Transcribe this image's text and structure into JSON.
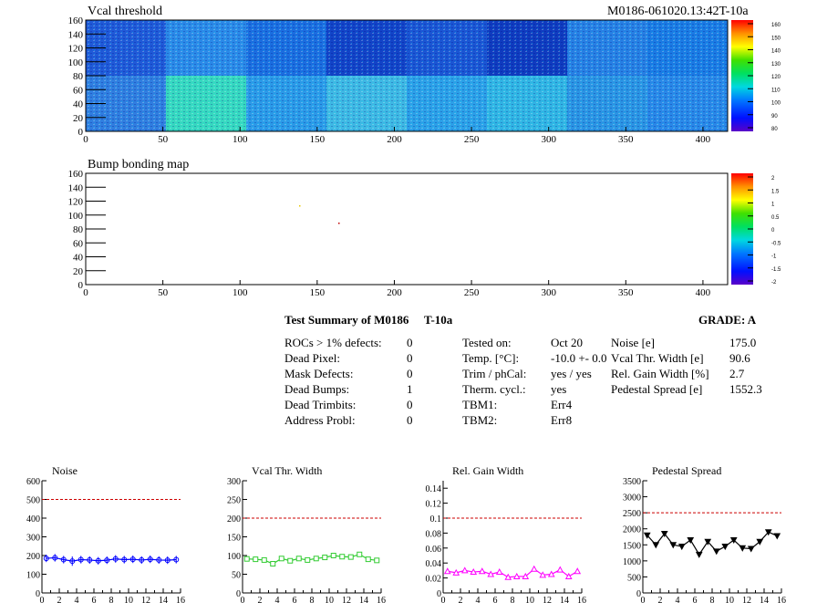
{
  "header": {
    "map_title": "Vcal threshold",
    "module_id": "M0186-061020.13:42T-10a",
    "bump_title": "Bump bonding map"
  },
  "threshold_map": {
    "x_ticks": [
      "0",
      "50",
      "100",
      "150",
      "200",
      "250",
      "300",
      "350",
      "400"
    ],
    "y_ticks": [
      "0",
      "20",
      "40",
      "60",
      "80",
      "100",
      "120",
      "140",
      "160"
    ],
    "palette_ticks": [
      "160",
      "150",
      "140",
      "130",
      "120",
      "110",
      "100",
      "90",
      "80"
    ]
  },
  "bump_map": {
    "x_ticks": [
      "0",
      "50",
      "100",
      "150",
      "200",
      "250",
      "300",
      "350",
      "400"
    ],
    "y_ticks": [
      "0",
      "20",
      "40",
      "60",
      "80",
      "100",
      "120",
      "140",
      "160"
    ],
    "palette_ticks": [
      "2",
      "1.5",
      "1",
      "0.5",
      "0",
      "-0.5",
      "-1",
      "-1.5",
      "-2"
    ]
  },
  "summary": {
    "title_left": "Test Summary of M0186",
    "title_mid": "T-10a",
    "grade": "GRADE:  A",
    "defects": [
      {
        "label": "ROCs > 1% defects:",
        "value": "0"
      },
      {
        "label": "Dead Pixel:",
        "value": "0"
      },
      {
        "label": "Mask Defects:",
        "value": "0"
      },
      {
        "label": "Dead Bumps:",
        "value": "1"
      },
      {
        "label": "Dead Trimbits:",
        "value": "0"
      },
      {
        "label": "Address Probl:",
        "value": "0"
      }
    ],
    "conditions": [
      {
        "label": "Tested on:",
        "value": "Oct 20"
      },
      {
        "label": "Temp. [°C]:",
        "value": "-10.0 +- 0.0"
      },
      {
        "label": "Trim / phCal:",
        "value": "yes / yes"
      },
      {
        "label": "Therm. cycl.:",
        "value": "yes"
      },
      {
        "label": "TBM1:",
        "value": "Err4"
      },
      {
        "label": "TBM2:",
        "value": "Err8"
      }
    ],
    "results": [
      {
        "label": "Noise [e]",
        "value": "175.0"
      },
      {
        "label": "Vcal Thr. Width [e]",
        "value": "90.6"
      },
      {
        "label": "Rel. Gain Width [%]",
        "value": "2.7"
      },
      {
        "label": "Pedestal Spread [e]",
        "value": "1552.3"
      }
    ]
  },
  "chart_data": [
    {
      "type": "line",
      "title": "Noise",
      "x": [
        0,
        1,
        2,
        3,
        4,
        5,
        6,
        7,
        8,
        9,
        10,
        11,
        12,
        13,
        14,
        15
      ],
      "values": [
        185,
        188,
        178,
        170,
        178,
        176,
        172,
        175,
        182,
        178,
        180,
        176,
        180,
        176,
        175,
        178
      ],
      "errors": [
        20,
        20,
        20,
        25,
        20,
        20,
        20,
        20,
        20,
        20,
        20,
        20,
        20,
        20,
        20,
        20
      ],
      "xlim": [
        0,
        16
      ],
      "ylim": [
        0,
        600
      ],
      "x_ticks": [
        0,
        2,
        4,
        6,
        8,
        10,
        12,
        14,
        16
      ],
      "y_ticks": [
        0,
        100,
        200,
        300,
        400,
        500,
        600
      ],
      "y_tick_labels": [
        "0",
        "100",
        "200",
        "300",
        "400",
        "500",
        "600"
      ],
      "threshold": 500,
      "color": "#0000ff",
      "marker": "circle"
    },
    {
      "type": "line",
      "title": "Vcal Thr. Width",
      "x": [
        0,
        1,
        2,
        3,
        4,
        5,
        6,
        7,
        8,
        9,
        10,
        11,
        12,
        13,
        14,
        15
      ],
      "values": [
        91,
        90,
        88,
        78,
        92,
        86,
        92,
        88,
        92,
        95,
        100,
        97,
        96,
        103,
        90,
        87
      ],
      "xlim": [
        0,
        16
      ],
      "ylim": [
        0,
        300
      ],
      "x_ticks": [
        0,
        2,
        4,
        6,
        8,
        10,
        12,
        14,
        16
      ],
      "y_ticks": [
        0,
        50,
        100,
        150,
        200,
        250,
        300
      ],
      "y_tick_labels": [
        "0",
        "50",
        "100",
        "150",
        "200",
        "250",
        "300"
      ],
      "threshold": 200,
      "color": "#33cc33",
      "marker": "square"
    },
    {
      "type": "line",
      "title": "Rel. Gain Width",
      "x": [
        0,
        1,
        2,
        3,
        4,
        5,
        6,
        7,
        8,
        9,
        10,
        11,
        12,
        13,
        14,
        15
      ],
      "values": [
        0.029,
        0.027,
        0.03,
        0.028,
        0.029,
        0.025,
        0.028,
        0.021,
        0.022,
        0.022,
        0.032,
        0.024,
        0.025,
        0.031,
        0.022,
        0.029
      ],
      "xlim": [
        0,
        16
      ],
      "ylim": [
        0,
        0.15
      ],
      "x_ticks": [
        0,
        2,
        4,
        6,
        8,
        10,
        12,
        14,
        16
      ],
      "y_ticks": [
        0,
        0.02,
        0.04,
        0.06,
        0.08,
        0.1,
        0.12,
        0.14
      ],
      "y_tick_labels": [
        "0",
        "0.02",
        "0.04",
        "0.06",
        "0.08",
        "0.1",
        "0.12",
        "0.14"
      ],
      "threshold": 0.1,
      "color": "#ff00ff",
      "marker": "triangle"
    },
    {
      "type": "line",
      "title": "Pedestal Spread",
      "x": [
        0,
        1,
        2,
        3,
        4,
        5,
        6,
        7,
        8,
        9,
        10,
        11,
        12,
        13,
        14,
        15
      ],
      "values": [
        1800,
        1500,
        1850,
        1500,
        1450,
        1650,
        1200,
        1600,
        1300,
        1450,
        1650,
        1400,
        1380,
        1600,
        1900,
        1780
      ],
      "xlim": [
        0,
        16
      ],
      "ylim": [
        0,
        3500
      ],
      "x_ticks": [
        0,
        2,
        4,
        6,
        8,
        10,
        12,
        14,
        16
      ],
      "y_ticks": [
        0,
        500,
        1000,
        1500,
        2000,
        2500,
        3000,
        3500
      ],
      "y_tick_labels": [
        "0",
        "500",
        "1000",
        "1500",
        "2000",
        "2500",
        "3000",
        "3500"
      ],
      "threshold": 2500,
      "color": "#000000",
      "marker": "triangle-down"
    }
  ]
}
